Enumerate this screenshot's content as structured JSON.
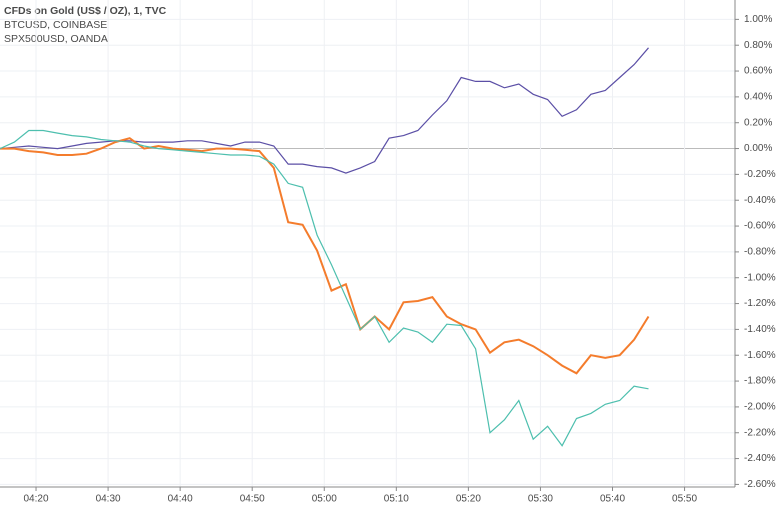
{
  "chart_data": {
    "type": "line",
    "title": "CFDs on Gold (US$ / OZ), 1, TVC",
    "subtitles": [
      "BTCUSD, COINBASE",
      "SPX500USD, OANDA"
    ],
    "x": [
      15,
      17,
      19,
      21,
      23,
      25,
      27,
      29,
      31,
      33,
      35,
      37,
      39,
      41,
      43,
      45,
      47,
      49,
      51,
      53,
      55,
      57,
      59,
      61,
      63,
      65,
      67,
      69,
      71,
      73,
      75,
      77,
      79,
      81,
      83,
      85,
      87,
      89,
      91,
      93,
      95,
      97,
      99,
      101,
      103,
      105
    ],
    "series": [
      {
        "name": "CFDs on Gold (US$ / OZ), 1, TVC",
        "color": "#5b4fa6",
        "values": [
          0,
          0.01,
          0.02,
          0.01,
          0,
          0.02,
          0.04,
          0.05,
          0.06,
          0.06,
          0.05,
          0.05,
          0.05,
          0.06,
          0.06,
          0.04,
          0.02,
          0.05,
          0.05,
          0.02,
          -0.12,
          -0.12,
          -0.14,
          -0.15,
          -0.19,
          -0.15,
          -0.1,
          0.08,
          0.1,
          0.14,
          0.26,
          0.37,
          0.55,
          0.52,
          0.52,
          0.47,
          0.5,
          0.42,
          0.38,
          0.25,
          0.3,
          0.42,
          0.45,
          0.55,
          0.65,
          0.78
        ]
      },
      {
        "name": "BTCUSD, COINBASE",
        "color": "#f47c2c",
        "values": [
          0,
          0,
          -0.02,
          -0.03,
          -0.05,
          -0.05,
          -0.04,
          0,
          0.05,
          0.08,
          0,
          0.02,
          0,
          -0.01,
          -0.02,
          0,
          0,
          -0.01,
          -0.02,
          -0.15,
          -0.57,
          -0.59,
          -0.79,
          -1.1,
          -1.05,
          -1.4,
          -1.3,
          -1.4,
          -1.19,
          -1.18,
          -1.15,
          -1.3,
          -1.36,
          -1.4,
          -1.58,
          -1.5,
          -1.48,
          -1.53,
          -1.6,
          -1.68,
          -1.74,
          -1.6,
          -1.62,
          -1.6,
          -1.48,
          -1.3
        ]
      },
      {
        "name": "SPX500USD, OANDA",
        "color": "#4dbfae",
        "values": [
          0,
          0.05,
          0.14,
          0.14,
          0.12,
          0.1,
          0.09,
          0.07,
          0.06,
          0.05,
          0.02,
          0,
          -0.01,
          -0.02,
          -0.03,
          -0.04,
          -0.05,
          -0.05,
          -0.06,
          -0.12,
          -0.27,
          -0.3,
          -0.67,
          -0.9,
          -1.15,
          -1.4,
          -1.3,
          -1.5,
          -1.39,
          -1.42,
          -1.5,
          -1.36,
          -1.37,
          -1.55,
          -2.2,
          -2.1,
          -1.95,
          -2.25,
          -2.15,
          -2.3,
          -2.09,
          -2.05,
          -1.98,
          -1.95,
          -1.84,
          -1.86
        ]
      }
    ],
    "xlim": [
      15,
      117
    ],
    "xticks": [
      {
        "value": 20,
        "label": "04:20"
      },
      {
        "value": 30,
        "label": "04:30"
      },
      {
        "value": 40,
        "label": "04:40"
      },
      {
        "value": 50,
        "label": "04:50"
      },
      {
        "value": 60,
        "label": "05:00"
      },
      {
        "value": 70,
        "label": "05:10"
      },
      {
        "value": 80,
        "label": "05:20"
      },
      {
        "value": 90,
        "label": "05:30"
      },
      {
        "value": 100,
        "label": "05:40"
      },
      {
        "value": 110,
        "label": "05:50"
      }
    ],
    "ylim": [
      -2.62,
      1.15
    ],
    "yticks": [
      {
        "value": 1,
        "label": "1.00%"
      },
      {
        "value": 0.8,
        "label": "0.80%"
      },
      {
        "value": 0.6,
        "label": "0.60%"
      },
      {
        "value": 0.4,
        "label": "0.40%"
      },
      {
        "value": 0.2,
        "label": "0.20%"
      },
      {
        "value": 0,
        "label": "0.00%"
      },
      {
        "value": -0.2,
        "label": "-0.20%"
      },
      {
        "value": -0.4,
        "label": "-0.40%"
      },
      {
        "value": -0.6,
        "label": "-0.60%"
      },
      {
        "value": -0.8,
        "label": "-0.80%"
      },
      {
        "value": -1,
        "label": "-1.00%"
      },
      {
        "value": -1.2,
        "label": "-1.20%"
      },
      {
        "value": -1.4,
        "label": "-1.40%"
      },
      {
        "value": -1.6,
        "label": "-1.60%"
      },
      {
        "value": -1.8,
        "label": "-1.80%"
      },
      {
        "value": -2,
        "label": "-2.00%"
      },
      {
        "value": -2.2,
        "label": "-2.20%"
      },
      {
        "value": -2.4,
        "label": "-2.40%"
      },
      {
        "value": -2.6,
        "label": "-2.60%"
      }
    ],
    "grid": true
  }
}
